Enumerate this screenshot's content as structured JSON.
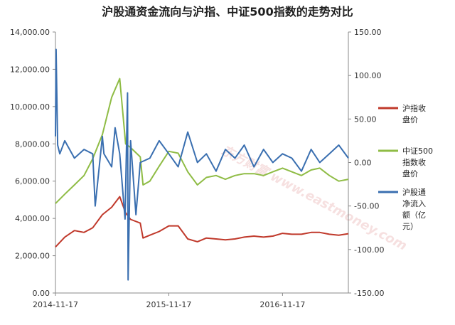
{
  "chart_data": {
    "type": "line",
    "title": "沪股通资金流向与沪指、中证500指数的走势对比",
    "x_ticks": [
      "2014-11-17",
      "2015-11-17",
      "2016-11-17"
    ],
    "y_left": {
      "range": [
        0,
        14000
      ],
      "ticks": [
        "0.00",
        "2,000.00",
        "4,000.00",
        "6,000.00",
        "8,000.00",
        "10,000.00",
        "12,000.00",
        "14,000.00"
      ]
    },
    "y_right": {
      "range": [
        -150,
        150
      ],
      "ticks": [
        "-150.00",
        "-100.00",
        "-50.00",
        "0.00",
        "50.00",
        "100.00",
        "150.00"
      ]
    },
    "grid": false,
    "legend_position": "right",
    "series": [
      {
        "name": "沪指收盘价",
        "axis": "left",
        "color": "#c0392b",
        "x": [
          "2014-11-17",
          "2014-12-17",
          "2015-01-17",
          "2015-02-17",
          "2015-03-17",
          "2015-04-17",
          "2015-05-17",
          "2015-06-12",
          "2015-07-01",
          "2015-07-17",
          "2015-08-17",
          "2015-08-26",
          "2015-09-17",
          "2015-10-17",
          "2015-11-17",
          "2015-12-17",
          "2016-01-17",
          "2016-02-17",
          "2016-03-17",
          "2016-04-17",
          "2016-05-17",
          "2016-06-17",
          "2016-07-17",
          "2016-08-17",
          "2016-09-17",
          "2016-10-17",
          "2016-11-17",
          "2016-12-17",
          "2017-01-17",
          "2017-02-17",
          "2017-03-17",
          "2017-04-17",
          "2017-05-17",
          "2017-06-17"
        ],
        "values": [
          2470,
          3000,
          3350,
          3250,
          3500,
          4200,
          4600,
          5170,
          4300,
          3950,
          3750,
          2950,
          3100,
          3300,
          3600,
          3600,
          2900,
          2750,
          2950,
          2900,
          2850,
          2900,
          3000,
          3050,
          3000,
          3050,
          3200,
          3150,
          3150,
          3250,
          3250,
          3150,
          3100,
          3180
        ]
      },
      {
        "name": "中证500指数收盘价",
        "axis": "left",
        "color": "#8fbc45",
        "x": [
          "2014-11-17",
          "2014-12-17",
          "2015-01-17",
          "2015-02-17",
          "2015-03-17",
          "2015-04-17",
          "2015-05-17",
          "2015-06-12",
          "2015-07-01",
          "2015-07-17",
          "2015-08-17",
          "2015-08-26",
          "2015-09-17",
          "2015-10-17",
          "2015-11-17",
          "2015-12-17",
          "2016-01-17",
          "2016-02-17",
          "2016-03-17",
          "2016-04-17",
          "2016-05-17",
          "2016-06-17",
          "2016-07-17",
          "2016-08-17",
          "2016-09-17",
          "2016-10-17",
          "2016-11-17",
          "2016-12-17",
          "2017-01-17",
          "2017-02-17",
          "2017-03-17",
          "2017-04-17",
          "2017-05-17",
          "2017-06-17"
        ],
        "values": [
          4800,
          5300,
          5800,
          6300,
          7200,
          8500,
          10500,
          11500,
          8000,
          7800,
          7300,
          5800,
          6000,
          6800,
          7600,
          7500,
          6500,
          5800,
          6200,
          6300,
          6100,
          6300,
          6400,
          6400,
          6300,
          6500,
          6700,
          6500,
          6300,
          6600,
          6700,
          6300,
          6000,
          6100
        ]
      },
      {
        "name": "沪股通净流入额（亿元）",
        "axis": "right",
        "color": "#3a6fb0",
        "x": [
          "2014-11-17",
          "2014-11-19",
          "2014-11-24",
          "2014-12-01",
          "2014-12-17",
          "2015-01-17",
          "2015-02-17",
          "2015-03-17",
          "2015-03-25",
          "2015-04-17",
          "2015-04-22",
          "2015-05-17",
          "2015-05-28",
          "2015-06-12",
          "2015-06-29",
          "2015-07-07",
          "2015-07-09",
          "2015-07-17",
          "2015-08-03",
          "2015-08-17",
          "2015-09-17",
          "2015-10-17",
          "2015-11-17",
          "2015-12-17",
          "2016-01-17",
          "2016-02-17",
          "2016-03-17",
          "2016-04-17",
          "2016-05-17",
          "2016-06-17",
          "2016-07-17",
          "2016-08-17",
          "2016-09-17",
          "2016-10-17",
          "2016-11-17",
          "2016-12-17",
          "2017-01-17",
          "2017-02-17",
          "2017-03-17",
          "2017-04-17",
          "2017-05-17",
          "2017-06-17"
        ],
        "values": [
          30,
          130,
          20,
          10,
          25,
          5,
          15,
          10,
          -50,
          30,
          10,
          -5,
          40,
          10,
          -65,
          80,
          -135,
          25,
          -60,
          0,
          5,
          25,
          10,
          -5,
          35,
          0,
          10,
          -10,
          15,
          5,
          20,
          -5,
          15,
          0,
          10,
          5,
          -10,
          15,
          0,
          10,
          20,
          5
        ]
      }
    ]
  }
}
